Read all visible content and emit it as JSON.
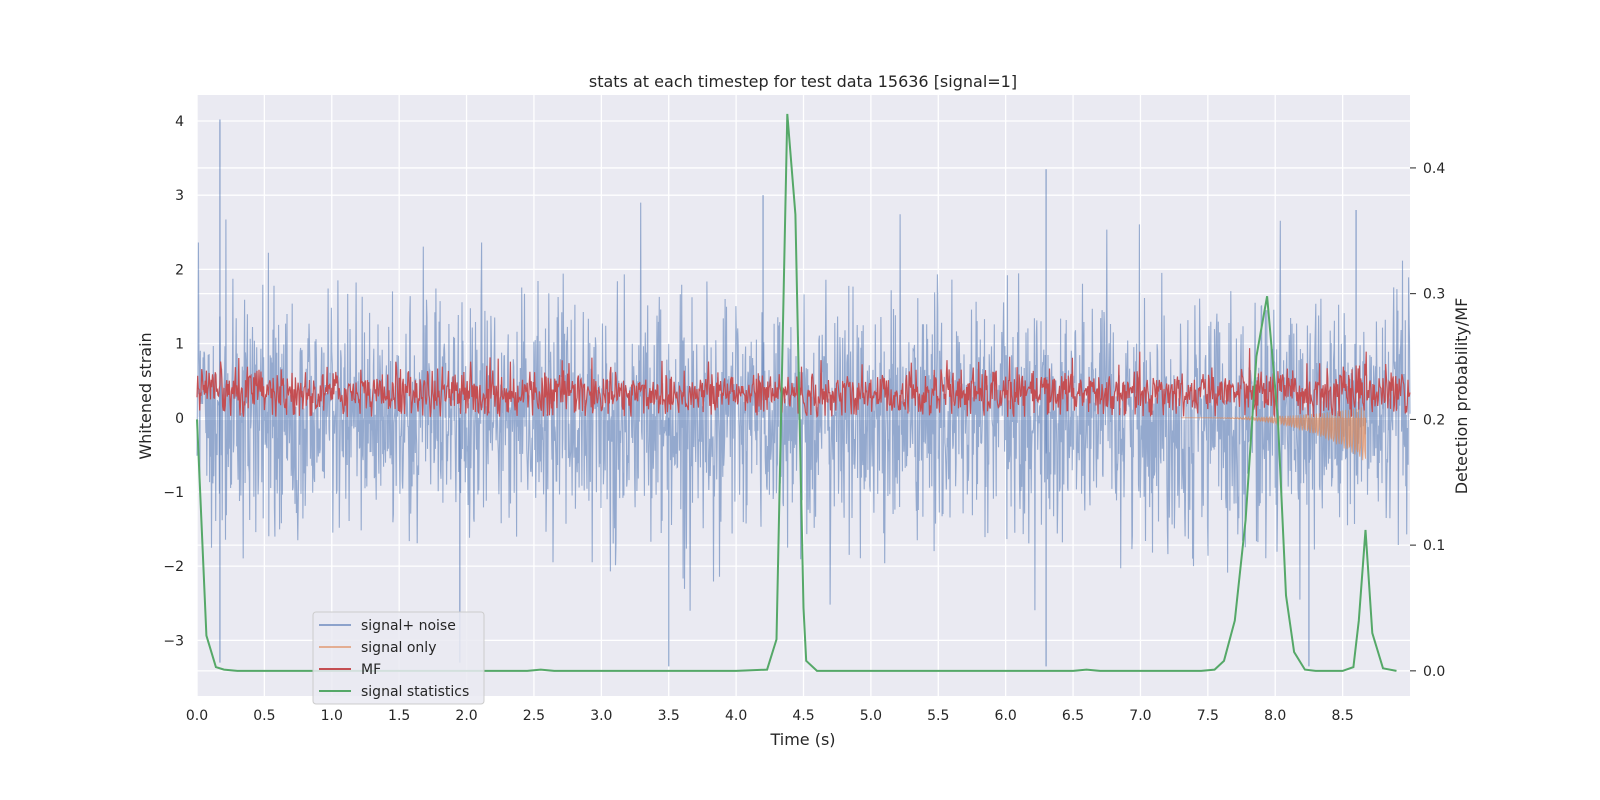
{
  "chart_data": {
    "type": "line",
    "title": "stats at each timestep for test data 15636 [signal=1]",
    "xlabel": "Time (s)",
    "ylabel": "Whitened strain",
    "y2label": "Detection probability/MF",
    "xlim": [
      0.0,
      9.0
    ],
    "ylim": [
      -3.75,
      4.35
    ],
    "y2lim": [
      -0.02,
      0.458
    ],
    "xticks": [
      "0.0",
      "0.5",
      "1.0",
      "1.5",
      "2.0",
      "2.5",
      "3.0",
      "3.5",
      "4.0",
      "4.5",
      "5.0",
      "5.5",
      "6.0",
      "6.5",
      "7.0",
      "7.5",
      "8.0",
      "8.5"
    ],
    "yticks": [
      "−3",
      "−2",
      "−1",
      "0",
      "1",
      "2",
      "3",
      "4"
    ],
    "y2ticks": [
      "0.0",
      "0.1",
      "0.2",
      "0.3",
      "0.4"
    ],
    "grid": true,
    "legend_position": "lower-left",
    "series": [
      {
        "name": "signal+ noise",
        "color": "#4c72b0",
        "axis": "left",
        "description": "dense noisy strain, roughly symmetric around 0 with spikes to about +4 and -3.4",
        "spikes": [
          {
            "x": 0.17,
            "y": 4.02
          },
          {
            "x": 0.17,
            "y": -3.3
          },
          {
            "x": 1.95,
            "y": -3.3
          },
          {
            "x": 3.5,
            "y": -3.35
          },
          {
            "x": 4.2,
            "y": 3.0
          },
          {
            "x": 6.3,
            "y": 3.35
          },
          {
            "x": 6.3,
            "y": -3.35
          },
          {
            "x": 8.25,
            "y": -3.35
          },
          {
            "x": 8.6,
            "y": 2.8
          }
        ]
      },
      {
        "name": "signal only",
        "color": "#dd8452",
        "axis": "left",
        "description": "chirp signal growing from near 0 to about -0.6 at t = 8.67 s",
        "envelope": {
          "start": 7.3,
          "end": 8.67,
          "peak": -0.6
        }
      },
      {
        "name": "MF",
        "color": "#c44e52",
        "axis": "left",
        "description": "matched filter output, noisy band between about 0 and 0.95"
      },
      {
        "name": "signal statistics",
        "color": "#55a868",
        "axis": "right",
        "points": [
          [
            0.0,
            0.2
          ],
          [
            0.07,
            0.028
          ],
          [
            0.14,
            0.003
          ],
          [
            0.2,
            0.001
          ],
          [
            0.3,
            0.0
          ],
          [
            1.0,
            0.0
          ],
          [
            2.0,
            0.0
          ],
          [
            2.45,
            0.0
          ],
          [
            2.55,
            0.001
          ],
          [
            2.65,
            0.0
          ],
          [
            3.0,
            0.0
          ],
          [
            3.5,
            0.0
          ],
          [
            4.0,
            0.0
          ],
          [
            4.23,
            0.001
          ],
          [
            4.3,
            0.025
          ],
          [
            4.38,
            0.443
          ],
          [
            4.44,
            0.363
          ],
          [
            4.5,
            0.05
          ],
          [
            4.52,
            0.008
          ],
          [
            4.6,
            0.0
          ],
          [
            5.0,
            0.0
          ],
          [
            5.5,
            0.0
          ],
          [
            6.0,
            0.0
          ],
          [
            6.5,
            0.0
          ],
          [
            6.6,
            0.001
          ],
          [
            6.7,
            0.0
          ],
          [
            7.0,
            0.0
          ],
          [
            7.45,
            0.0
          ],
          [
            7.55,
            0.001
          ],
          [
            7.62,
            0.008
          ],
          [
            7.7,
            0.04
          ],
          [
            7.78,
            0.12
          ],
          [
            7.86,
            0.25
          ],
          [
            7.94,
            0.298
          ],
          [
            8.02,
            0.2
          ],
          [
            8.08,
            0.06
          ],
          [
            8.14,
            0.015
          ],
          [
            8.22,
            0.001
          ],
          [
            8.3,
            0.0
          ],
          [
            8.5,
            0.0
          ],
          [
            8.58,
            0.003
          ],
          [
            8.62,
            0.04
          ],
          [
            8.67,
            0.112
          ],
          [
            8.72,
            0.03
          ],
          [
            8.8,
            0.002
          ],
          [
            8.9,
            0.0
          ]
        ]
      }
    ]
  }
}
